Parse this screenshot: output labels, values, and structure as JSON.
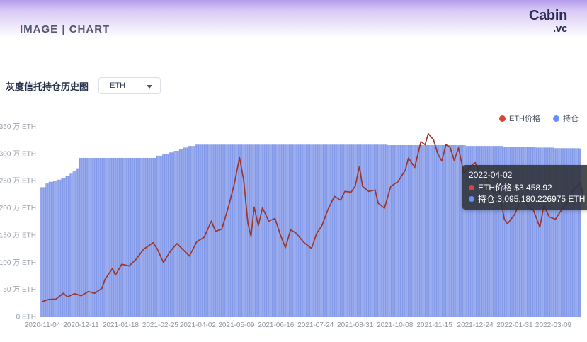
{
  "header": {
    "title": "IMAGE | CHART",
    "logo_line1": "Cabin",
    "logo_line2": ".vc"
  },
  "controls": {
    "chart_title": "灰度信托持仓历史图",
    "asset_select_value": "ETH"
  },
  "legend": [
    {
      "label": "ETH价格",
      "color": "#d6443a"
    },
    {
      "label": "持仓",
      "color": "#6690f7"
    }
  ],
  "tooltip": {
    "date": "2022-04-02",
    "rows": [
      {
        "marker_color": "#d6443a",
        "text": "ETH价格:$3,458.92"
      },
      {
        "marker_color": "#6690f7",
        "text": "持仓:3,095,180.226975 ETH"
      }
    ]
  },
  "chart_data": {
    "type": "bar",
    "subtype": "combo: step-bar area (holdings) + line (price), dual axis (price axis hidden)",
    "title": "灰度信托持仓历史图",
    "x_start_date": "2020-11-04",
    "x_tick_labels": [
      "2020-11-04",
      "2020-12-11",
      "2021-01-18",
      "2021-02-25",
      "2021-04-02",
      "2021-05-09",
      "2021-06-16",
      "2021-07-24",
      "2021-08-31",
      "2021-10-08",
      "2021-11-15",
      "2021-12-24",
      "2022-01-31",
      "2022-03-09"
    ],
    "y_axis": {
      "unit": "万 ETH",
      "min": 0,
      "max": 350,
      "tick_step": 50,
      "tick_labels": [
        "0 ETH",
        "50 万 ETH",
        "100 万 ETH",
        "150 万 ETH",
        "200 万 ETH",
        "250 万 ETH",
        "300 万 ETH",
        "350 万 ETH"
      ]
    },
    "hidden_price_axis": {
      "unit": "USD",
      "min": 0,
      "max": 5000
    },
    "grid": false,
    "legend_position": "top-right",
    "series": [
      {
        "name": "持仓",
        "type": "bar-area-step",
        "unit": "万 ETH",
        "color": "#8097e8",
        "stripe_color": "#b9c5f3",
        "points": [
          [
            "2020-11-04",
            238
          ],
          [
            "2020-11-07",
            245
          ],
          [
            "2020-11-10",
            248
          ],
          [
            "2020-11-14",
            250
          ],
          [
            "2020-11-18",
            252
          ],
          [
            "2020-11-22",
            255
          ],
          [
            "2020-11-26",
            259
          ],
          [
            "2020-11-30",
            263
          ],
          [
            "2020-12-03",
            268
          ],
          [
            "2020-12-06",
            273
          ],
          [
            "2020-12-09",
            292
          ],
          [
            "2021-02-21",
            296
          ],
          [
            "2021-02-27",
            299
          ],
          [
            "2021-03-05",
            302
          ],
          [
            "2021-03-10",
            305
          ],
          [
            "2021-03-15",
            308
          ],
          [
            "2021-03-19",
            311
          ],
          [
            "2021-03-24",
            314
          ],
          [
            "2021-03-30",
            316.5
          ],
          [
            "2021-10-01",
            315.5
          ],
          [
            "2021-12-15",
            314
          ],
          [
            "2022-01-20",
            312.5
          ],
          [
            "2022-02-20",
            311
          ],
          [
            "2022-03-10",
            310
          ],
          [
            "2022-04-02",
            309.518
          ],
          [
            "2022-04-06",
            309.518
          ]
        ]
      },
      {
        "name": "ETH价格",
        "type": "line",
        "unit": "USD",
        "color": "#9c352c",
        "points": [
          [
            "2020-11-04",
            395
          ],
          [
            "2020-11-10",
            450
          ],
          [
            "2020-11-17",
            460
          ],
          [
            "2020-11-24",
            610
          ],
          [
            "2020-11-28",
            520
          ],
          [
            "2020-12-05",
            600
          ],
          [
            "2020-12-11",
            545
          ],
          [
            "2020-12-18",
            655
          ],
          [
            "2020-12-24",
            610
          ],
          [
            "2020-12-31",
            740
          ],
          [
            "2021-01-03",
            975
          ],
          [
            "2021-01-10",
            1260
          ],
          [
            "2021-01-13",
            1090
          ],
          [
            "2021-01-19",
            1375
          ],
          [
            "2021-01-26",
            1330
          ],
          [
            "2021-02-02",
            1510
          ],
          [
            "2021-02-09",
            1770
          ],
          [
            "2021-02-18",
            1940
          ],
          [
            "2021-02-22",
            1780
          ],
          [
            "2021-02-28",
            1420
          ],
          [
            "2021-03-07",
            1730
          ],
          [
            "2021-03-13",
            1920
          ],
          [
            "2021-03-18",
            1780
          ],
          [
            "2021-03-25",
            1590
          ],
          [
            "2021-04-01",
            1970
          ],
          [
            "2021-04-08",
            2080
          ],
          [
            "2021-04-15",
            2510
          ],
          [
            "2021-04-19",
            2240
          ],
          [
            "2021-04-25",
            2300
          ],
          [
            "2021-05-02",
            2950
          ],
          [
            "2021-05-07",
            3490
          ],
          [
            "2021-05-12",
            4180
          ],
          [
            "2021-05-16",
            3580
          ],
          [
            "2021-05-20",
            2450
          ],
          [
            "2021-05-23",
            2100
          ],
          [
            "2021-05-26",
            2880
          ],
          [
            "2021-05-30",
            2390
          ],
          [
            "2021-06-03",
            2860
          ],
          [
            "2021-06-09",
            2510
          ],
          [
            "2021-06-15",
            2580
          ],
          [
            "2021-06-20",
            2160
          ],
          [
            "2021-06-25",
            1810
          ],
          [
            "2021-06-30",
            2280
          ],
          [
            "2021-07-05",
            2200
          ],
          [
            "2021-07-13",
            1940
          ],
          [
            "2021-07-20",
            1790
          ],
          [
            "2021-07-25",
            2190
          ],
          [
            "2021-07-30",
            2390
          ],
          [
            "2021-08-05",
            2830
          ],
          [
            "2021-08-11",
            3160
          ],
          [
            "2021-08-17",
            3060
          ],
          [
            "2021-08-21",
            3290
          ],
          [
            "2021-08-27",
            3270
          ],
          [
            "2021-08-31",
            3430
          ],
          [
            "2021-09-04",
            3950
          ],
          [
            "2021-09-07",
            3420
          ],
          [
            "2021-09-13",
            3290
          ],
          [
            "2021-09-19",
            3330
          ],
          [
            "2021-09-22",
            2980
          ],
          [
            "2021-09-28",
            2850
          ],
          [
            "2021-10-04",
            3420
          ],
          [
            "2021-10-11",
            3550
          ],
          [
            "2021-10-18",
            3850
          ],
          [
            "2021-10-21",
            4170
          ],
          [
            "2021-10-27",
            3920
          ],
          [
            "2021-11-02",
            4600
          ],
          [
            "2021-11-06",
            4520
          ],
          [
            "2021-11-09",
            4810
          ],
          [
            "2021-11-14",
            4650
          ],
          [
            "2021-11-18",
            4290
          ],
          [
            "2021-11-22",
            4090
          ],
          [
            "2021-11-26",
            4520
          ],
          [
            "2021-11-30",
            4450
          ],
          [
            "2021-12-04",
            4100
          ],
          [
            "2021-12-08",
            4440
          ],
          [
            "2021-12-13",
            3780
          ],
          [
            "2021-12-20",
            3960
          ],
          [
            "2021-12-24",
            4050
          ],
          [
            "2021-12-28",
            3800
          ],
          [
            "2022-01-02",
            3830
          ],
          [
            "2022-01-05",
            3550
          ],
          [
            "2022-01-11",
            3240
          ],
          [
            "2022-01-16",
            3330
          ],
          [
            "2022-01-21",
            2560
          ],
          [
            "2022-01-24",
            2440
          ],
          [
            "2022-01-31",
            2690
          ],
          [
            "2022-02-07",
            3150
          ],
          [
            "2022-02-13",
            2880
          ],
          [
            "2022-02-18",
            2790
          ],
          [
            "2022-02-24",
            2350
          ],
          [
            "2022-02-28",
            2920
          ],
          [
            "2022-03-05",
            2620
          ],
          [
            "2022-03-11",
            2560
          ],
          [
            "2022-03-16",
            2770
          ],
          [
            "2022-03-22",
            2970
          ],
          [
            "2022-03-27",
            3290
          ],
          [
            "2022-03-30",
            3380
          ],
          [
            "2022-04-02",
            3459
          ],
          [
            "2022-04-04",
            3520
          ],
          [
            "2022-04-06",
            3230
          ]
        ]
      }
    ]
  }
}
